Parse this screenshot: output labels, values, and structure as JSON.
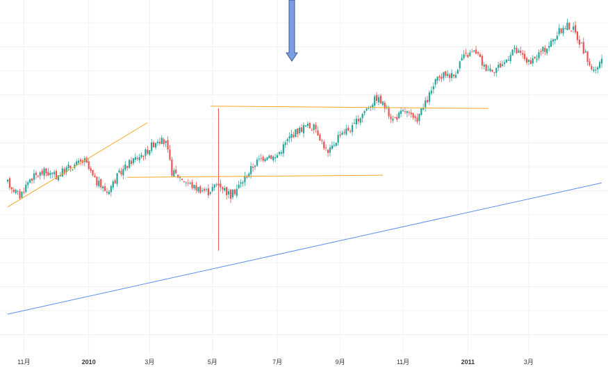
{
  "chart_data": {
    "type": "candlestick",
    "title": "",
    "xlabel": "",
    "ylabel": "",
    "grid": true,
    "colors": {
      "up": "#26a69a",
      "down": "#ef5350",
      "trendline": "#f5a623",
      "long_trendline": "#5b8def",
      "arrow_fill": "#7c9ee0",
      "arrow_stroke": "#3a5998",
      "grid": "#f0f0f0",
      "axis_text": "#333333"
    },
    "x_ticks": [
      {
        "label": "11月",
        "year": false
      },
      {
        "label": "2010",
        "year": true
      },
      {
        "label": "3月",
        "year": false
      },
      {
        "label": "5月",
        "year": false
      },
      {
        "label": "7月",
        "year": false
      },
      {
        "label": "9月",
        "year": false
      },
      {
        "label": "11月",
        "year": false
      },
      {
        "label": "2011",
        "year": true
      },
      {
        "label": "3月",
        "year": false
      }
    ],
    "price_path": [
      [
        0,
        52
      ],
      [
        6,
        40
      ],
      [
        11,
        56
      ],
      [
        18,
        62
      ],
      [
        24,
        58
      ],
      [
        30,
        66
      ],
      [
        38,
        72
      ],
      [
        43,
        54
      ],
      [
        49,
        44
      ],
      [
        55,
        60
      ],
      [
        61,
        72
      ],
      [
        68,
        80
      ],
      [
        74,
        92
      ],
      [
        78,
        88
      ],
      [
        81,
        62
      ],
      [
        86,
        56
      ],
      [
        92,
        48
      ],
      [
        99,
        44
      ],
      [
        104,
        52
      ],
      [
        110,
        40
      ],
      [
        116,
        54
      ],
      [
        122,
        70
      ],
      [
        128,
        78
      ],
      [
        132,
        75
      ],
      [
        140,
        96
      ],
      [
        147,
        104
      ],
      [
        152,
        102
      ],
      [
        158,
        78
      ],
      [
        164,
        98
      ],
      [
        170,
        102
      ],
      [
        176,
        118
      ],
      [
        182,
        130
      ],
      [
        185,
        124
      ],
      [
        190,
        110
      ],
      [
        196,
        118
      ],
      [
        201,
        108
      ],
      [
        206,
        124
      ],
      [
        211,
        144
      ],
      [
        216,
        152
      ],
      [
        220,
        150
      ],
      [
        224,
        166
      ],
      [
        228,
        170
      ],
      [
        231,
        172
      ],
      [
        235,
        158
      ],
      [
        240,
        156
      ],
      [
        245,
        162
      ],
      [
        249,
        174
      ],
      [
        254,
        168
      ],
      [
        258,
        160
      ],
      [
        262,
        170
      ],
      [
        267,
        178
      ],
      [
        272,
        190
      ],
      [
        276,
        196
      ],
      [
        279,
        192
      ],
      [
        283,
        178
      ],
      [
        287,
        160
      ],
      [
        290,
        152
      ],
      [
        293,
        166
      ]
    ],
    "annotations": [
      {
        "type": "trendline",
        "name": "rising-support",
        "from": [
          0,
          30
        ],
        "to": [
          69,
          107
        ]
      },
      {
        "type": "trendline",
        "name": "range-bottom",
        "from": [
          59,
          57
        ],
        "to": [
          185,
          59
        ]
      },
      {
        "type": "trendline",
        "name": "range-top",
        "from": [
          100,
          122
        ],
        "to": [
          237,
          120
        ]
      },
      {
        "type": "trendline",
        "name": "long-trendline",
        "from": [
          0,
          -68
        ],
        "to": [
          293,
          52
        ]
      },
      {
        "type": "arrow",
        "name": "down-arrow"
      }
    ]
  }
}
